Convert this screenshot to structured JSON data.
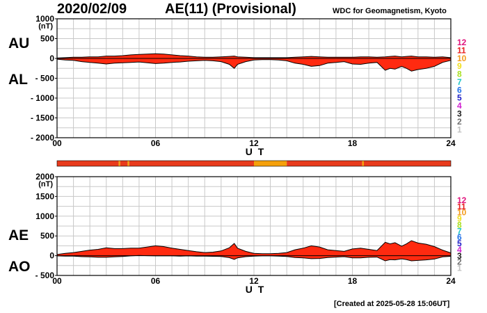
{
  "header": {
    "date": "2020/02/09",
    "title": "AE(11) (Provisional)",
    "institution": "WDC for Geomagnetism, Kyoto"
  },
  "labels": {
    "au": "AU",
    "al": "AL",
    "ae": "AE",
    "ao": "AO"
  },
  "footer": {
    "created": "[Created at 2025-05-28 15:06UT]"
  },
  "colors": {
    "fill": "#ff2a10",
    "line": "#000000",
    "grid": "#c8c8c8",
    "status_red": "#e83a1c",
    "status_orange": "#f5a00a"
  },
  "legend_stations": [
    {
      "label": "12",
      "color": "#e0147c"
    },
    {
      "label": "11",
      "color": "#e81e1e"
    },
    {
      "label": "10",
      "color": "#f39a1c"
    },
    {
      "label": "9",
      "color": "#f0e020"
    },
    {
      "label": "8",
      "color": "#a8e020"
    },
    {
      "label": "7",
      "color": "#20c8c8"
    },
    {
      "label": "6",
      "color": "#2070e8"
    },
    {
      "label": "5",
      "color": "#2020c8"
    },
    {
      "label": "4",
      "color": "#d020d0"
    },
    {
      "label": "3",
      "color": "#202020"
    },
    {
      "label": "2",
      "color": "#707070"
    },
    {
      "label": "1",
      "color": "#c0c0c0"
    }
  ],
  "status_bar": [
    {
      "from": 0,
      "to": 3.75,
      "level": "red"
    },
    {
      "from": 3.75,
      "to": 3.85,
      "level": "orange"
    },
    {
      "from": 3.85,
      "to": 4.3,
      "level": "red"
    },
    {
      "from": 4.3,
      "to": 4.4,
      "level": "orange"
    },
    {
      "from": 4.4,
      "to": 12.0,
      "level": "red"
    },
    {
      "from": 12.0,
      "to": 14.0,
      "level": "orange"
    },
    {
      "from": 14.0,
      "to": 18.6,
      "level": "red"
    },
    {
      "from": 18.6,
      "to": 18.7,
      "level": "orange"
    },
    {
      "from": 18.7,
      "to": 24,
      "level": "red"
    }
  ],
  "chart_data": [
    {
      "type": "area",
      "name": "AU/AL",
      "xlabel": "U T",
      "ylabel": "(nT)",
      "xlim": [
        0,
        24
      ],
      "ylim": [
        -2000,
        1000
      ],
      "xticks": [
        "00",
        "06",
        "12",
        "18",
        "24"
      ],
      "yticks": [
        1000,
        500,
        0,
        -500,
        -1000,
        -1500,
        -2000
      ],
      "ytick_labels": [
        "1000",
        "500",
        "0",
        "- 500",
        "- 1000",
        "- 1500",
        "- 2000"
      ],
      "x": [
        0,
        0.5,
        1,
        1.5,
        2,
        2.5,
        3,
        3.5,
        4,
        4.5,
        5,
        5.5,
        6,
        6.5,
        7,
        7.5,
        8,
        8.5,
        9,
        9.5,
        10,
        10.5,
        10.8,
        11,
        11.5,
        12,
        12.5,
        13,
        13.5,
        14,
        14.5,
        15,
        15.5,
        16,
        16.5,
        17,
        17.5,
        18,
        18.5,
        19,
        19.5,
        20,
        20.3,
        20.6,
        21,
        21.3,
        21.6,
        22,
        22.5,
        23,
        23.5,
        24
      ],
      "series": [
        {
          "name": "AU",
          "values": [
            10,
            20,
            30,
            30,
            40,
            40,
            60,
            60,
            70,
            90,
            100,
            110,
            120,
            110,
            90,
            70,
            60,
            40,
            30,
            30,
            40,
            50,
            60,
            40,
            30,
            20,
            20,
            20,
            20,
            20,
            30,
            40,
            50,
            40,
            30,
            30,
            30,
            30,
            40,
            40,
            30,
            40,
            50,
            60,
            40,
            50,
            60,
            40,
            40,
            30,
            40,
            20
          ]
        },
        {
          "name": "AL",
          "values": [
            -20,
            -40,
            -50,
            -80,
            -100,
            -120,
            -140,
            -120,
            -110,
            -100,
            -90,
            -110,
            -130,
            -120,
            -100,
            -90,
            -70,
            -60,
            -50,
            -60,
            -80,
            -150,
            -250,
            -150,
            -80,
            -40,
            -30,
            -30,
            -40,
            -60,
            -120,
            -150,
            -200,
            -180,
            -120,
            -100,
            -80,
            -140,
            -150,
            -120,
            -100,
            -300,
            -250,
            -270,
            -200,
            -250,
            -320,
            -280,
            -250,
            -200,
            -100,
            -50
          ]
        }
      ]
    },
    {
      "type": "area",
      "name": "AE/AO",
      "xlabel": "U T",
      "ylabel": "(nT)",
      "xlim": [
        0,
        24
      ],
      "ylim": [
        -500,
        2000
      ],
      "xticks": [
        "00",
        "06",
        "12",
        "18",
        "24"
      ],
      "yticks": [
        2000,
        1500,
        1000,
        500,
        0,
        -500
      ],
      "ytick_labels": [
        "2000",
        "1500",
        "1000",
        "500",
        "0",
        "- 500"
      ],
      "x": [
        0,
        0.5,
        1,
        1.5,
        2,
        2.5,
        3,
        3.5,
        4,
        4.5,
        5,
        5.5,
        6,
        6.5,
        7,
        7.5,
        8,
        8.5,
        9,
        9.5,
        10,
        10.5,
        10.8,
        11,
        11.5,
        12,
        12.5,
        13,
        13.5,
        14,
        14.5,
        15,
        15.5,
        16,
        16.5,
        17,
        17.5,
        18,
        18.5,
        19,
        19.5,
        20,
        20.3,
        20.6,
        21,
        21.3,
        21.6,
        22,
        22.5,
        23,
        23.5,
        24
      ],
      "series": [
        {
          "name": "AE",
          "values": [
            30,
            60,
            80,
            110,
            140,
            160,
            200,
            180,
            180,
            190,
            190,
            220,
            250,
            230,
            190,
            160,
            130,
            100,
            80,
            90,
            120,
            200,
            310,
            190,
            110,
            60,
            50,
            50,
            60,
            80,
            150,
            190,
            250,
            220,
            150,
            130,
            110,
            170,
            190,
            160,
            130,
            340,
            300,
            330,
            240,
            300,
            380,
            320,
            290,
            230,
            140,
            70
          ]
        },
        {
          "name": "AO",
          "values": [
            -5,
            -10,
            -10,
            -25,
            -30,
            -40,
            -40,
            -30,
            -20,
            -5,
            5,
            0,
            -5,
            -5,
            -5,
            -10,
            -5,
            -10,
            -10,
            -15,
            -20,
            -50,
            -95,
            -55,
            -25,
            -10,
            -5,
            -5,
            -10,
            -20,
            -45,
            -55,
            -75,
            -70,
            -45,
            -35,
            -25,
            -55,
            -55,
            -40,
            -35,
            -130,
            -100,
            -105,
            -80,
            -100,
            -130,
            -120,
            -105,
            -85,
            -30,
            -15
          ]
        }
      ]
    }
  ]
}
